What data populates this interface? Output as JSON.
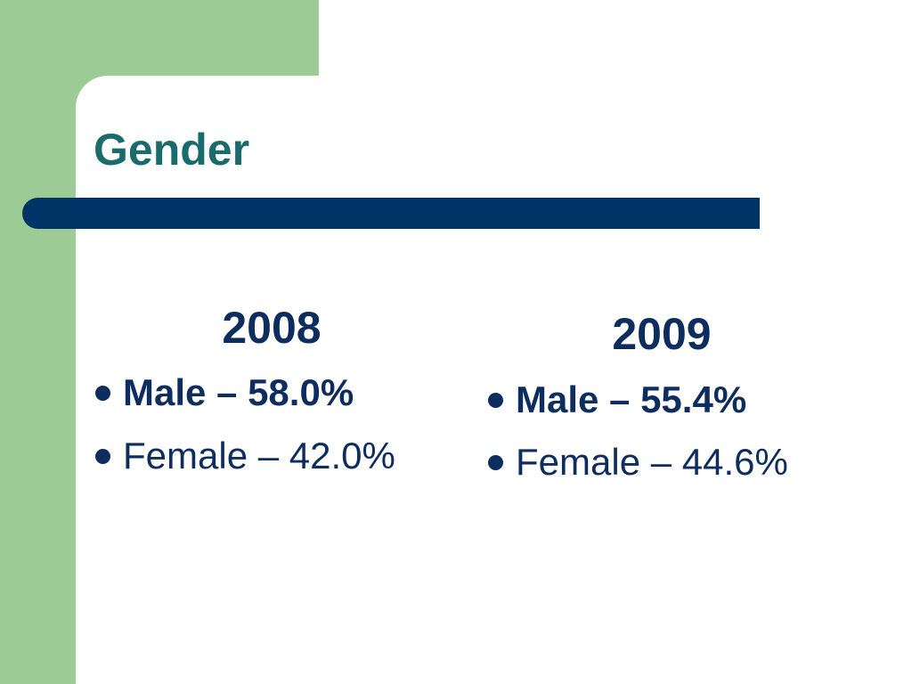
{
  "title": "Gender",
  "columns": [
    {
      "heading": "2008",
      "items": [
        "Male – 58.0%",
        "Female – 42.0%"
      ]
    },
    {
      "heading": "2009",
      "items": [
        "Male – 55.4%",
        "Female – 44.6%"
      ]
    }
  ]
}
